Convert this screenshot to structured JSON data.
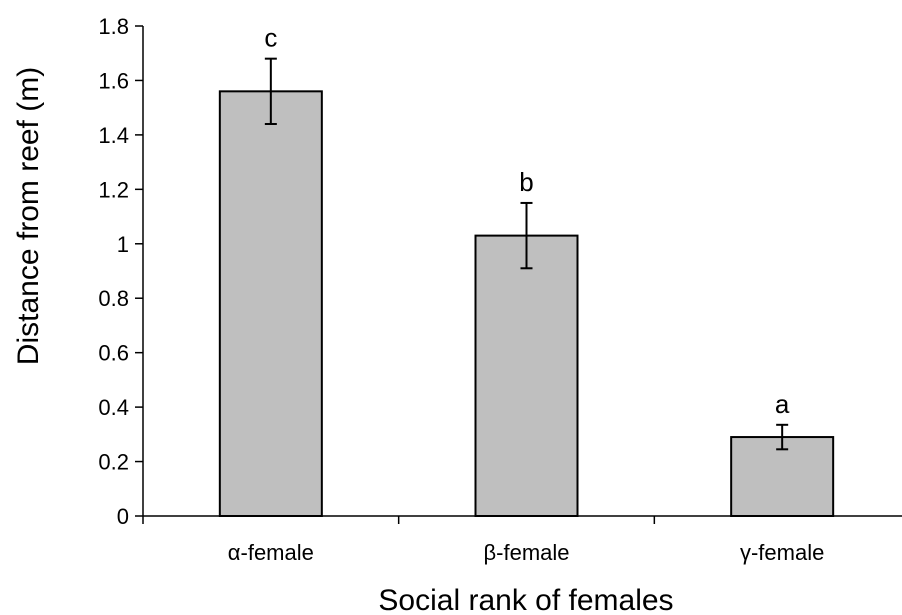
{
  "chart_data": {
    "type": "bar",
    "title": "",
    "xlabel": "Social rank of females",
    "ylabel": "Distance from reef (m)",
    "ylim": [
      0,
      1.8
    ],
    "ytick_step": 0.2,
    "yticks": [
      "0",
      "0.2",
      "0.4",
      "0.6",
      "0.8",
      "1",
      "1.2",
      "1.4",
      "1.6",
      "1.8"
    ],
    "categories": [
      "α-female",
      "β-female",
      "γ-female"
    ],
    "values": [
      1.56,
      1.03,
      0.29
    ],
    "error": [
      0.12,
      0.12,
      0.045
    ],
    "significance_labels": [
      "c",
      "b",
      "a"
    ],
    "grid": false,
    "legend": "none",
    "colors": {
      "bar_fill": "#bfbfbf",
      "bar_stroke": "#000000",
      "axis": "#000000"
    }
  }
}
